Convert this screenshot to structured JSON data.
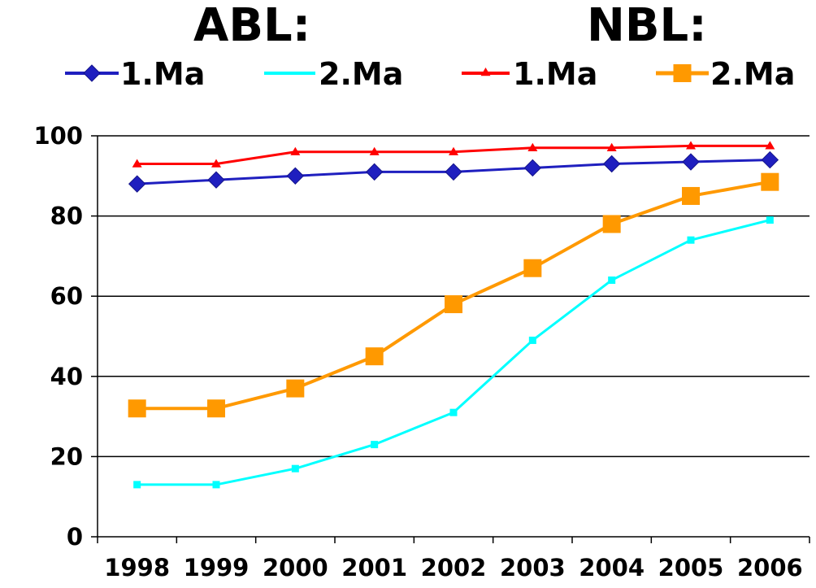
{
  "header": {
    "group_left": "ABL:",
    "group_right": "NBL:"
  },
  "chart_data": {
    "type": "line",
    "x": [
      "1998",
      "1999",
      "2000",
      "2001",
      "2002",
      "2003",
      "2004",
      "2005",
      "2006"
    ],
    "ylim": [
      0,
      100
    ],
    "yticks": [
      "0",
      "20",
      "40",
      "60",
      "80",
      "100"
    ],
    "grid": "horizontal",
    "legend_position": "top",
    "series": [
      {
        "name": "1.Ma",
        "group": "ABL",
        "color": "#1F1FBF",
        "marker": "diamond",
        "values": [
          88,
          89,
          90,
          91,
          91,
          92,
          93,
          93.5,
          94
        ]
      },
      {
        "name": "2.Ma",
        "group": "ABL",
        "color": "#00FFFF",
        "marker": "small-square",
        "values": [
          13,
          13,
          17,
          23,
          31,
          49,
          64,
          74,
          79
        ]
      },
      {
        "name": "1.Ma",
        "group": "NBL",
        "color": "#FF0000",
        "marker": "triangle",
        "values": [
          93,
          93,
          96,
          96,
          96,
          97,
          97,
          97.5,
          97.5
        ]
      },
      {
        "name": "2.Ma",
        "group": "NBL",
        "color": "#FF9900",
        "marker": "square",
        "values": [
          32,
          32,
          37,
          45,
          58,
          67,
          78,
          85,
          88.5
        ]
      }
    ]
  }
}
